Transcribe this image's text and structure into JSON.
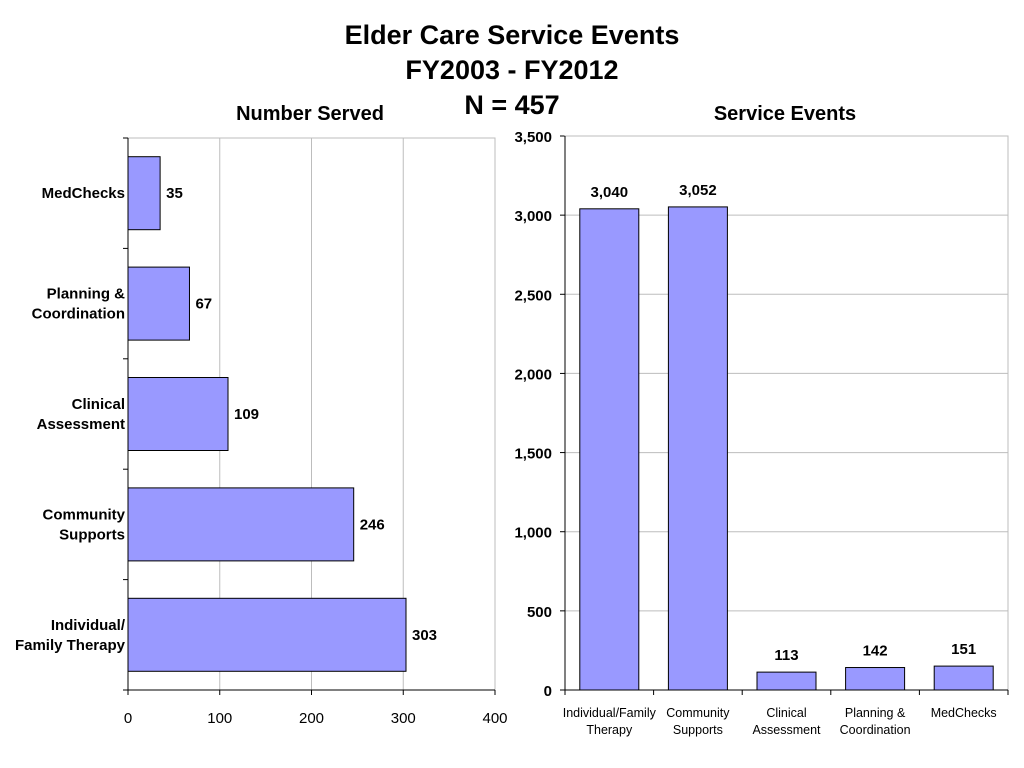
{
  "title": {
    "line1": "Elder Care Service Events",
    "line2": "FY2003 - FY2012",
    "line3": "N = 457"
  },
  "chart_data": [
    {
      "type": "bar",
      "orientation": "horizontal",
      "title": "Number Served",
      "categories": [
        [
          "MedChecks"
        ],
        [
          "Planning &",
          "Coordination"
        ],
        [
          "Clinical",
          "Assessment"
        ],
        [
          "Community",
          "Supports"
        ],
        [
          "Individual/",
          "Family Therapy"
        ]
      ],
      "values": [
        35,
        67,
        109,
        246,
        303
      ],
      "value_labels": [
        "35",
        "67",
        "109",
        "246",
        "303"
      ],
      "xlim": [
        0,
        400
      ],
      "xticks": [
        0,
        100,
        200,
        300,
        400
      ],
      "xtick_labels": [
        "0",
        "100",
        "200",
        "300",
        "400"
      ],
      "grid": true,
      "bar_color": "#9999ff"
    },
    {
      "type": "bar",
      "orientation": "vertical",
      "title": "Service Events",
      "categories": [
        [
          "Individual/Family",
          "Therapy"
        ],
        [
          "Community",
          "Supports"
        ],
        [
          "Clinical",
          "Assessment"
        ],
        [
          "Planning &",
          "Coordination"
        ],
        [
          "MedChecks"
        ]
      ],
      "values": [
        3040,
        3052,
        113,
        142,
        151
      ],
      "value_labels": [
        "3,040",
        "3,052",
        "113",
        "142",
        "151"
      ],
      "ylim": [
        0,
        3500
      ],
      "yticks": [
        0,
        500,
        1000,
        1500,
        2000,
        2500,
        3000,
        3500
      ],
      "ytick_labels": [
        "0",
        "500",
        "1,000",
        "1,500",
        "2,000",
        "2,500",
        "3,000",
        "3,500"
      ],
      "grid": true,
      "bar_color": "#9999ff"
    }
  ]
}
